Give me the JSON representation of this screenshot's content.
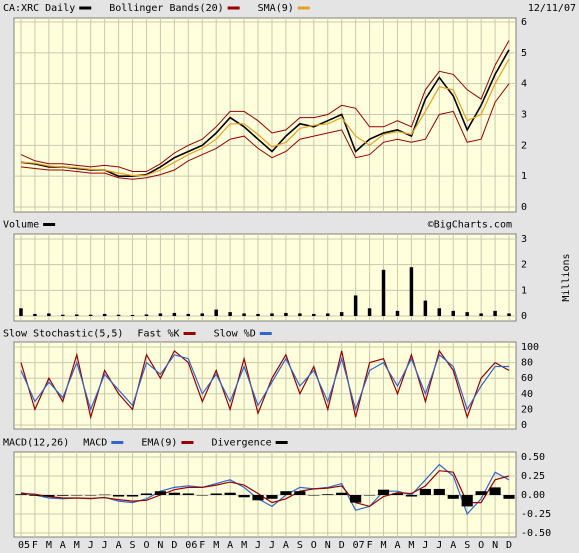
{
  "chart_data": [
    {
      "type": "price",
      "date": "12/11/07",
      "ylim": [
        0,
        6
      ],
      "yticks": [
        0,
        1,
        2,
        3,
        4,
        5,
        6
      ],
      "grid": true,
      "series": [
        {
          "name": "CA:XRC Daily",
          "color": "#000000",
          "values": [
            1.45,
            1.4,
            1.3,
            1.3,
            1.25,
            1.2,
            1.2,
            1.0,
            1.0,
            1.05,
            1.3,
            1.6,
            1.8,
            2.0,
            2.4,
            2.9,
            2.6,
            2.2,
            1.8,
            2.3,
            2.7,
            2.6,
            2.8,
            3.0,
            1.8,
            2.2,
            2.4,
            2.5,
            2.3,
            3.5,
            4.2,
            3.6,
            2.5,
            3.3,
            4.3,
            5.1
          ]
        },
        {
          "name": "Bollinger Bands(20)",
          "color": "#990000",
          "upper": [
            1.7,
            1.5,
            1.4,
            1.4,
            1.35,
            1.3,
            1.35,
            1.3,
            1.15,
            1.15,
            1.4,
            1.75,
            2.0,
            2.2,
            2.6,
            3.1,
            3.1,
            2.8,
            2.4,
            2.5,
            2.9,
            2.9,
            3.0,
            3.3,
            3.2,
            2.6,
            2.6,
            2.8,
            2.6,
            3.8,
            4.4,
            4.3,
            3.8,
            3.5,
            4.6,
            5.4
          ],
          "lower": [
            1.3,
            1.25,
            1.2,
            1.2,
            1.15,
            1.1,
            1.1,
            0.95,
            0.9,
            0.95,
            1.05,
            1.2,
            1.5,
            1.7,
            1.9,
            2.2,
            2.3,
            1.9,
            1.6,
            1.8,
            2.2,
            2.3,
            2.4,
            2.5,
            1.6,
            1.7,
            2.1,
            2.2,
            2.1,
            2.2,
            3.0,
            3.1,
            2.1,
            2.2,
            3.4,
            4.0
          ]
        },
        {
          "name": "SMA(9)",
          "color": "#e8a020",
          "values": [
            1.45,
            1.42,
            1.33,
            1.3,
            1.27,
            1.22,
            1.2,
            1.1,
            1.02,
            1.03,
            1.2,
            1.45,
            1.7,
            1.9,
            2.2,
            2.7,
            2.7,
            2.35,
            1.95,
            2.1,
            2.55,
            2.65,
            2.7,
            2.9,
            2.3,
            2.0,
            2.35,
            2.45,
            2.35,
            3.1,
            3.9,
            3.8,
            2.8,
            3.0,
            4.0,
            4.8
          ]
        }
      ]
    },
    {
      "type": "bar",
      "note": "©BigCharts.com",
      "y_label": "Millions",
      "ylim": [
        0,
        3
      ],
      "yticks": [
        0,
        1,
        2,
        3
      ],
      "grid": true,
      "series": [
        {
          "name": "Volume",
          "color": "#000000",
          "values": [
            0.3,
            0.08,
            0.1,
            0.05,
            0.06,
            0.05,
            0.08,
            0.05,
            0.04,
            0.06,
            0.1,
            0.12,
            0.08,
            0.1,
            0.25,
            0.15,
            0.1,
            0.08,
            0.1,
            0.12,
            0.1,
            0.08,
            0.1,
            0.15,
            0.8,
            0.3,
            1.8,
            0.2,
            1.9,
            0.6,
            0.3,
            0.2,
            0.15,
            0.1,
            0.2,
            0.1
          ]
        }
      ]
    },
    {
      "type": "line",
      "title": "Slow Stochastic(5,5)",
      "ylim": [
        0,
        100
      ],
      "yticks": [
        0,
        20,
        40,
        60,
        80,
        100
      ],
      "grid": true,
      "series": [
        {
          "name": "Fast %K",
          "color": "#990000",
          "values": [
            80,
            20,
            60,
            30,
            90,
            10,
            70,
            40,
            20,
            90,
            60,
            95,
            80,
            30,
            70,
            20,
            85,
            15,
            60,
            90,
            40,
            75,
            20,
            95,
            10,
            80,
            85,
            40,
            90,
            30,
            95,
            70,
            10,
            60,
            80,
            70
          ]
        },
        {
          "name": "Slow %D",
          "color": "#3366cc",
          "values": [
            70,
            30,
            55,
            35,
            80,
            20,
            65,
            45,
            25,
            80,
            65,
            90,
            85,
            40,
            65,
            30,
            75,
            25,
            55,
            85,
            50,
            70,
            30,
            85,
            20,
            70,
            80,
            50,
            85,
            40,
            90,
            75,
            20,
            50,
            75,
            75
          ]
        }
      ]
    },
    {
      "type": "line",
      "title": "MACD(12,26)",
      "ylim": [
        -0.5,
        0.5
      ],
      "yticks": [
        {
          "value": -0.5,
          "label": "-0.50"
        },
        -0.25,
        {
          "value": 0,
          "label": "0.00"
        },
        0.25,
        {
          "value": 0.5,
          "label": "0.50"
        }
      ],
      "grid": true,
      "categories": [
        "05",
        "F",
        "M",
        "A",
        "M",
        "J",
        "J",
        "A",
        "S",
        "O",
        "N",
        "D",
        "06",
        "F",
        "M",
        "A",
        "M",
        "J",
        "J",
        "A",
        "S",
        "O",
        "N",
        "D",
        "07",
        "F",
        "M",
        "A",
        "M",
        "J",
        "J",
        "A",
        "S",
        "O",
        "N",
        "D"
      ],
      "series": [
        {
          "name": "MACD",
          "color": "#3366cc",
          "values": [
            0.03,
            0.0,
            -0.04,
            -0.05,
            -0.04,
            -0.05,
            -0.03,
            -0.08,
            -0.1,
            -0.05,
            0.05,
            0.1,
            0.12,
            0.1,
            0.15,
            0.2,
            0.1,
            -0.05,
            -0.15,
            0.0,
            0.1,
            0.08,
            0.1,
            0.15,
            -0.2,
            -0.15,
            0.05,
            0.05,
            0.0,
            0.2,
            0.4,
            0.25,
            -0.25,
            -0.05,
            0.3,
            0.2
          ]
        },
        {
          "name": "EMA(9)",
          "color": "#990000",
          "values": [
            0.02,
            0.01,
            -0.02,
            -0.04,
            -0.04,
            -0.045,
            -0.035,
            -0.06,
            -0.08,
            -0.07,
            0.0,
            0.07,
            0.1,
            0.1,
            0.13,
            0.17,
            0.13,
            0.02,
            -0.1,
            -0.05,
            0.05,
            0.08,
            0.09,
            0.12,
            -0.1,
            -0.15,
            -0.02,
            0.03,
            0.02,
            0.12,
            0.32,
            0.3,
            -0.1,
            -0.1,
            0.2,
            0.25
          ]
        },
        {
          "name": "Divergence",
          "color": "#000000",
          "style": "bar",
          "values": [
            0.01,
            -0.01,
            -0.02,
            -0.01,
            0.0,
            -0.005,
            0.005,
            -0.02,
            -0.02,
            0.02,
            0.05,
            0.03,
            0.02,
            0.0,
            0.02,
            0.03,
            -0.03,
            -0.07,
            -0.05,
            0.05,
            0.05,
            0.0,
            0.01,
            0.03,
            -0.1,
            0.0,
            0.07,
            0.02,
            -0.02,
            0.08,
            0.08,
            -0.05,
            -0.15,
            0.05,
            0.1,
            -0.05
          ]
        }
      ]
    }
  ]
}
